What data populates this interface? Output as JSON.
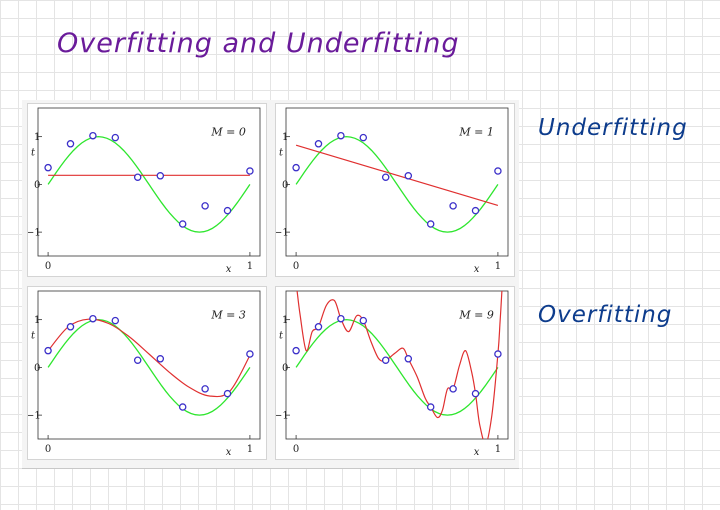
{
  "title": "Overfitting and Underfitting",
  "annotations": {
    "underfitting": "Underfitting",
    "overfitting": "Overfitting"
  },
  "colors": {
    "true_curve": "#2ee62e",
    "fit_curve": "#e03030",
    "points": "#3b2fc9",
    "title_ink": "#6a1b9a",
    "note_ink": "#0d3c8c"
  },
  "axes": {
    "xlabel": "x",
    "ylabel": "t",
    "xticks": [
      "0",
      "1"
    ],
    "yticks": [
      "1",
      "0",
      "−1"
    ],
    "xlim": [
      -0.05,
      1.05
    ],
    "ylim": [
      -1.5,
      1.6
    ]
  },
  "panels": [
    {
      "label": "M = 0"
    },
    {
      "label": "M = 1"
    },
    {
      "label": "M = 3"
    },
    {
      "label": "M = 9"
    }
  ],
  "chart_data": [
    {
      "type": "line",
      "title": "",
      "xlabel": "x",
      "ylabel": "t",
      "xlim": [
        -0.05,
        1.05
      ],
      "ylim": [
        -1.5,
        1.6
      ],
      "annotation": "M = 0",
      "points": {
        "x": [
          0,
          0.111,
          0.222,
          0.333,
          0.444,
          0.556,
          0.667,
          0.778,
          0.889,
          1
        ],
        "y": [
          0.35,
          0.85,
          1.02,
          0.98,
          0.15,
          0.18,
          -0.83,
          -0.45,
          -0.55,
          0.28
        ]
      },
      "true_curve": {
        "x": [
          0,
          0.25,
          0.5,
          0.75,
          1
        ],
        "y": [
          0,
          1,
          0,
          -1,
          0
        ]
      },
      "fit_curve": {
        "x": [
          0,
          1
        ],
        "y": [
          0.19,
          0.19
        ]
      }
    },
    {
      "type": "line",
      "title": "",
      "xlabel": "x",
      "ylabel": "t",
      "xlim": [
        -0.05,
        1.05
      ],
      "ylim": [
        -1.5,
        1.6
      ],
      "annotation": "M = 1",
      "points": {
        "x": [
          0,
          0.111,
          0.222,
          0.333,
          0.444,
          0.556,
          0.667,
          0.778,
          0.889,
          1
        ],
        "y": [
          0.35,
          0.85,
          1.02,
          0.98,
          0.15,
          0.18,
          -0.83,
          -0.45,
          -0.55,
          0.28
        ]
      },
      "true_curve": {
        "x": [
          0,
          0.25,
          0.5,
          0.75,
          1
        ],
        "y": [
          0,
          1,
          0,
          -1,
          0
        ]
      },
      "fit_curve": {
        "x": [
          0,
          1
        ],
        "y": [
          0.82,
          -0.44
        ]
      }
    },
    {
      "type": "line",
      "title": "",
      "xlabel": "x",
      "ylabel": "t",
      "xlim": [
        -0.05,
        1.05
      ],
      "ylim": [
        -1.5,
        1.6
      ],
      "annotation": "M = 3",
      "points": {
        "x": [
          0,
          0.111,
          0.222,
          0.333,
          0.444,
          0.556,
          0.667,
          0.778,
          0.889,
          1
        ],
        "y": [
          0.35,
          0.85,
          1.02,
          0.98,
          0.15,
          0.18,
          -0.83,
          -0.45,
          -0.55,
          0.28
        ]
      },
      "true_curve": {
        "x": [
          0,
          0.25,
          0.5,
          0.75,
          1
        ],
        "y": [
          0,
          1,
          0,
          -1,
          0
        ]
      },
      "fit_curve": {
        "x": [
          0,
          0.1,
          0.2,
          0.3,
          0.4,
          0.5,
          0.6,
          0.7,
          0.8,
          0.9,
          1
        ],
        "y": [
          0.35,
          0.85,
          1.01,
          0.92,
          0.65,
          0.28,
          -0.1,
          -0.42,
          -0.6,
          -0.5,
          0.25
        ]
      }
    },
    {
      "type": "line",
      "title": "",
      "xlabel": "x",
      "ylabel": "t",
      "xlim": [
        -0.05,
        1.05
      ],
      "ylim": [
        -1.5,
        1.6
      ],
      "annotation": "M = 9",
      "points": {
        "x": [
          0,
          0.111,
          0.222,
          0.333,
          0.444,
          0.556,
          0.667,
          0.778,
          0.889,
          1
        ],
        "y": [
          0.35,
          0.85,
          1.02,
          0.98,
          0.15,
          0.18,
          -0.83,
          -0.45,
          -0.55,
          0.28
        ]
      },
      "true_curve": {
        "x": [
          0,
          0.25,
          0.5,
          0.75,
          1
        ],
        "y": [
          0,
          1,
          0,
          -1,
          0
        ]
      },
      "fit_curve": {
        "x": [
          0.005,
          0.02,
          0.05,
          0.08,
          0.111,
          0.15,
          0.19,
          0.222,
          0.26,
          0.3,
          0.333,
          0.37,
          0.41,
          0.444,
          0.49,
          0.53,
          0.556,
          0.6,
          0.64,
          0.667,
          0.7,
          0.725,
          0.75,
          0.778,
          0.81,
          0.84,
          0.87,
          0.889,
          0.91,
          0.94,
          0.97,
          1,
          1.01,
          1.02
        ],
        "y": [
          1.6,
          1.1,
          0.35,
          0.75,
          0.85,
          1.3,
          1.4,
          1.02,
          0.75,
          1.08,
          0.98,
          0.55,
          0.18,
          0.15,
          0.3,
          0.4,
          0.18,
          -0.2,
          -0.65,
          -0.83,
          -1.05,
          -0.9,
          -0.45,
          -0.45,
          0.05,
          0.35,
          -0.1,
          -0.55,
          -1.2,
          -1.6,
          -1.0,
          0.28,
          0.9,
          1.6
        ]
      }
    }
  ]
}
